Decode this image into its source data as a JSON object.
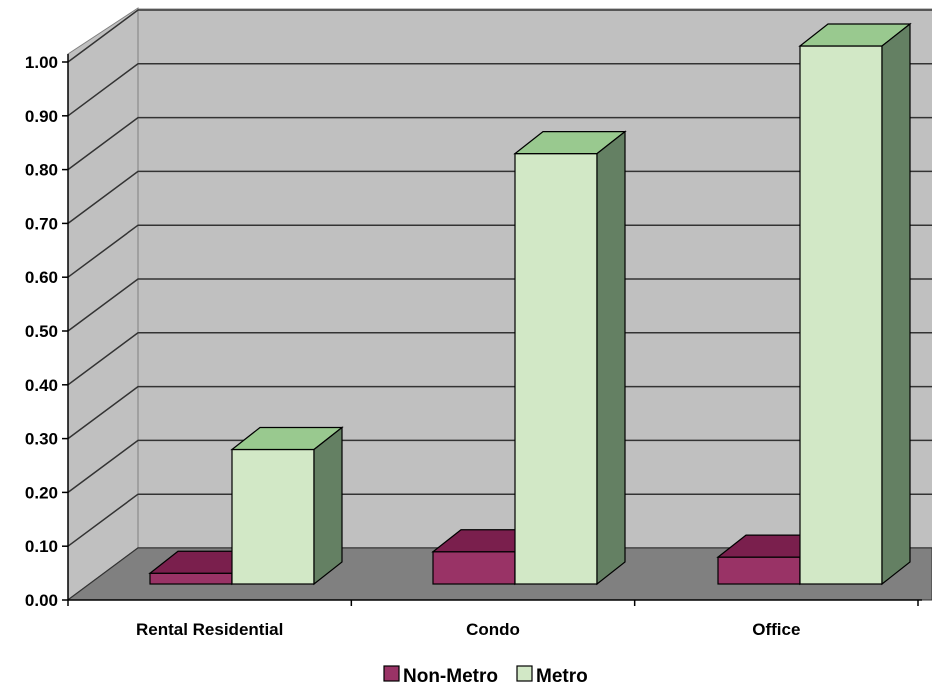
{
  "chart_data": {
    "type": "bar",
    "categories": [
      "Rental Residential",
      "Condo",
      "Office"
    ],
    "series": [
      {
        "name": "Non-Metro",
        "values": [
          0.02,
          0.06,
          0.05
        ],
        "front": "#993366",
        "top": "#7a1f4d",
        "side": "#66193f"
      },
      {
        "name": "Metro",
        "values": [
          0.25,
          0.8,
          1.0
        ],
        "front": "#d2e8c6",
        "top": "#99c98f",
        "side": "#648063"
      }
    ],
    "ylim": [
      0,
      1.0
    ],
    "yticks": [
      "0.00",
      "0.10",
      "0.20",
      "0.30",
      "0.40",
      "0.50",
      "0.60",
      "0.70",
      "0.80",
      "0.90",
      "1.00"
    ],
    "grid": true,
    "legend": "bottom"
  }
}
